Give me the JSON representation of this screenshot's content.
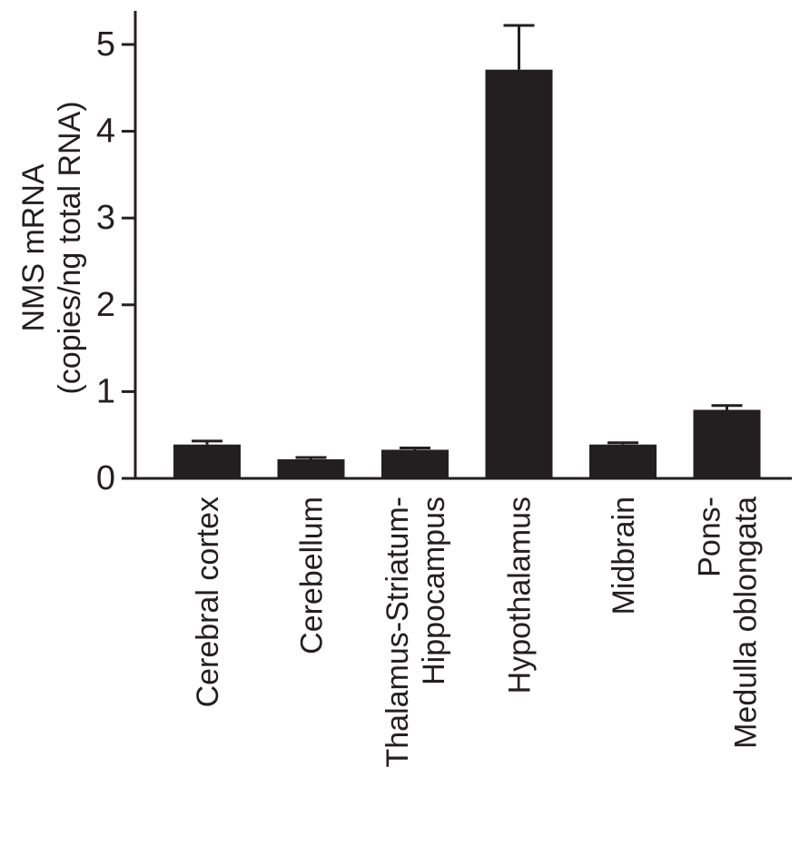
{
  "chart_data": {
    "type": "bar",
    "categories": [
      [
        "Cerebral cortex"
      ],
      [
        "Cerebellum"
      ],
      [
        "Thalamus-Striatum-",
        "Hippocampus"
      ],
      [
        "Hypothalamus"
      ],
      [
        "Midbrain"
      ],
      [
        "Pons-",
        "Medulla oblongata"
      ]
    ],
    "values": [
      0.39,
      0.22,
      0.33,
      4.71,
      0.39,
      0.79
    ],
    "errors": [
      0.04,
      0.02,
      0.02,
      0.51,
      0.02,
      0.05
    ],
    "ylabel_line1": "NMS mRNA",
    "ylabel_line2": "(copies/ng total RNA)",
    "yticks": [
      0,
      1,
      2,
      3,
      4,
      5
    ],
    "ylim": [
      0,
      5.4
    ],
    "bar_color": "#231f20",
    "grid": false,
    "legend": false
  }
}
